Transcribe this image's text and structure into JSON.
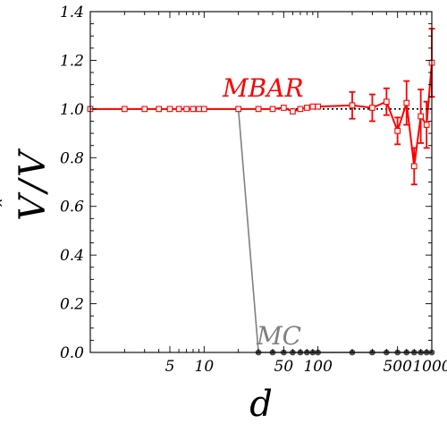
{
  "chart_data": {
    "type": "line",
    "xscale": "log",
    "xlim": [
      1,
      1000
    ],
    "ylim": [
      0,
      1.4
    ],
    "xlabel": "d",
    "ylabel_base": "V",
    "ylabel_sep": "/",
    "xticks": [
      {
        "value": 5,
        "label": "5"
      },
      {
        "value": 10,
        "label": "10"
      },
      {
        "value": 50,
        "label": "50"
      },
      {
        "value": 100,
        "label": "100"
      },
      {
        "value": 500,
        "label": "500"
      },
      {
        "value": 1000,
        "label": "1000"
      }
    ],
    "yticks": [
      {
        "value": 0.0,
        "label": "0.0"
      },
      {
        "value": 0.2,
        "label": "0.2"
      },
      {
        "value": 0.4,
        "label": "0.4"
      },
      {
        "value": 0.6,
        "label": "0.6"
      },
      {
        "value": 0.8,
        "label": "0.8"
      },
      {
        "value": 1.0,
        "label": "1.0"
      },
      {
        "value": 1.2,
        "label": "1.2"
      },
      {
        "value": 1.4,
        "label": "1.4"
      }
    ],
    "reference_line": {
      "y": 1.0,
      "style": "dotted",
      "color": "#000000"
    },
    "series": [
      {
        "name": "MC",
        "color": "#808080",
        "marker": "circle",
        "x": [
          1,
          2,
          3,
          4,
          5,
          6,
          7,
          8,
          9,
          10,
          20,
          30,
          40,
          50,
          60,
          70,
          80,
          90,
          100,
          200,
          300,
          400,
          500,
          600,
          700,
          800,
          900,
          1000
        ],
        "y": [
          1.0,
          1.0,
          1.0,
          1.0,
          1.0,
          1.0,
          1.0,
          1.0,
          1.0,
          1.0,
          1.0,
          0.0,
          0.0,
          0.0,
          0.0,
          0.0,
          0.0,
          0.0,
          0.0,
          0.0,
          0.0,
          0.0,
          0.0,
          0.0,
          0.0,
          0.0,
          0.0,
          0.0
        ]
      },
      {
        "name": "MBAR",
        "color": "#ff0000",
        "marker": "square",
        "x": [
          1,
          2,
          3,
          4,
          5,
          6,
          7,
          8,
          9,
          10,
          20,
          30,
          40,
          50,
          60,
          70,
          80,
          90,
          100,
          200,
          300,
          400,
          500,
          600,
          700,
          800,
          900,
          1000
        ],
        "y": [
          1.0,
          1.0,
          1.0,
          1.0,
          1.0,
          1.0,
          1.0,
          1.0,
          1.0,
          1.0,
          1.0,
          1.0,
          1.0,
          1.005,
          0.99,
          1.0,
          1.005,
          1.01,
          1.01,
          1.015,
          1.005,
          1.03,
          0.91,
          1.025,
          0.765,
          0.97,
          0.935,
          1.19
        ],
        "err": [
          0.01,
          0.01,
          0.01,
          0.01,
          0.01,
          0.01,
          0.01,
          0.01,
          0.01,
          0.01,
          0.005,
          0.005,
          0.005,
          0.01,
          0.01,
          0.01,
          0.01,
          0.01,
          0.01,
          0.055,
          0.055,
          0.055,
          0.055,
          0.09,
          0.075,
          0.11,
          0.095,
          0.14
        ]
      }
    ],
    "annotations": [
      {
        "text": "MBAR",
        "color": "#ff0000"
      },
      {
        "text": "MC",
        "color": "#808080"
      }
    ]
  }
}
